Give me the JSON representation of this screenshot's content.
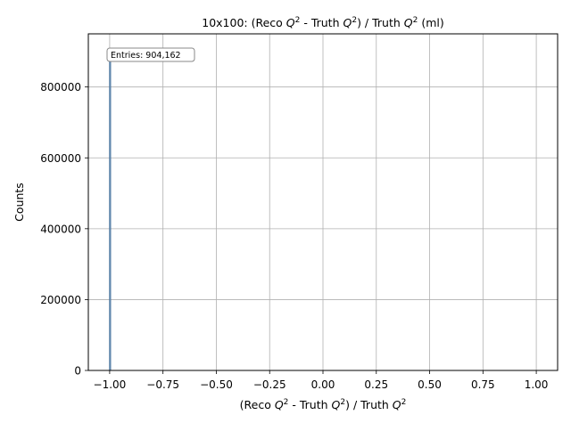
{
  "chart_data": {
    "type": "bar",
    "title_parts": [
      {
        "t": "10x100: (Reco "
      },
      {
        "t": "Q",
        "i": true
      },
      {
        "t": "2",
        "sup": true
      },
      {
        "t": " - Truth "
      },
      {
        "t": "Q",
        "i": true
      },
      {
        "t": "2",
        "sup": true
      },
      {
        "t": ") / Truth "
      },
      {
        "t": "Q",
        "i": true
      },
      {
        "t": "2",
        "sup": true
      },
      {
        "t": " (ml)"
      }
    ],
    "xlabel_parts": [
      {
        "t": "(Reco "
      },
      {
        "t": "Q",
        "i": true
      },
      {
        "t": "2",
        "sup": true
      },
      {
        "t": " - Truth "
      },
      {
        "t": "Q",
        "i": true
      },
      {
        "t": "2",
        "sup": true
      },
      {
        "t": ") / Truth "
      },
      {
        "t": "Q",
        "i": true
      },
      {
        "t": "2",
        "sup": true
      }
    ],
    "ylabel": "Counts",
    "xlim": [
      -1.1,
      1.1
    ],
    "ylim": [
      0,
      950000
    ],
    "xticks": [
      -1.0,
      -0.75,
      -0.5,
      -0.25,
      0.0,
      0.25,
      0.5,
      0.75,
      1.0
    ],
    "xtick_labels": [
      "−1.00",
      "−0.75",
      "−0.50",
      "−0.25",
      "0.00",
      "0.25",
      "0.50",
      "0.75",
      "1.00"
    ],
    "yticks": [
      0,
      200000,
      400000,
      600000,
      800000
    ],
    "ytick_labels": [
      "0",
      "200000",
      "400000",
      "600000",
      "800000"
    ],
    "bins": [
      {
        "x0": -1.0,
        "x1": -0.998,
        "count": 904162
      }
    ],
    "annotation": "Entries: 904,162",
    "annotation_position": "top-left",
    "grid": true,
    "bar_color": "#6a8fb4",
    "bar_edge_color": "#3f6d99"
  }
}
